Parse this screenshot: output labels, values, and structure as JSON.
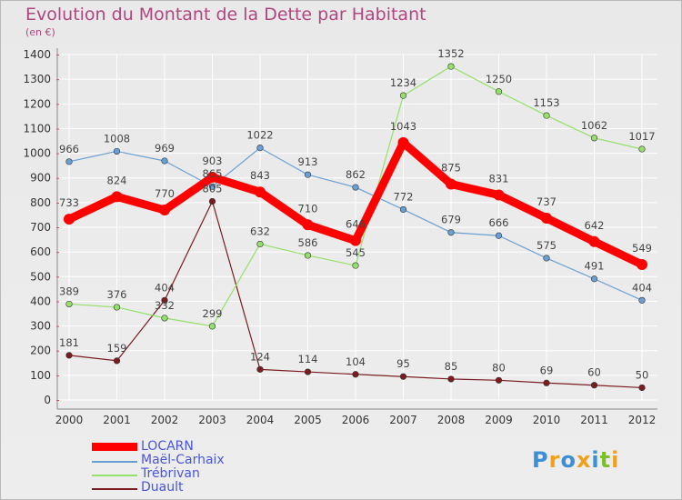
{
  "title": "Evolution du Montant de la Dette par Habitant",
  "subtitle": "(en €)",
  "logo": {
    "text": "Proxiti",
    "letters": [
      "P",
      "r",
      "o",
      "x",
      "i",
      "t",
      "i"
    ],
    "colors": [
      "#3a8fd6",
      "#f0a01a",
      "#3a8fd6",
      "#f0a01a",
      "#3a8fd6",
      "#7cbf2a",
      "#f0a01a"
    ]
  },
  "chart_data": {
    "type": "line",
    "x": [
      "2000",
      "2001",
      "2002",
      "2003",
      "2004",
      "2005",
      "2006",
      "2007",
      "2008",
      "2009",
      "2010",
      "2011",
      "2012"
    ],
    "ylim": [
      0,
      1400
    ],
    "yticks": [
      0,
      100,
      200,
      300,
      400,
      500,
      600,
      700,
      800,
      900,
      1000,
      1100,
      1200,
      1300,
      1400
    ],
    "grid": true,
    "legend": "bottom-left",
    "series": [
      {
        "name": "LOCARN",
        "color": "#ff0000",
        "width": 9,
        "point": 6,
        "values": [
          733,
          824,
          770,
          903,
          843,
          710,
          646,
          1043,
          875,
          831,
          737,
          642,
          549
        ],
        "labels": [
          "733",
          "824",
          "770",
          "903",
          "843",
          "710",
          "646",
          "1043",
          "875",
          "831",
          "737",
          "642",
          "549"
        ]
      },
      {
        "name": "Maël-Carhaix",
        "color": "#6a9fd4",
        "width": 1.2,
        "point": 3.3,
        "values": [
          966,
          1008,
          969,
          865,
          1022,
          913,
          862,
          772,
          679,
          666,
          575,
          491,
          404
        ],
        "labels": [
          "966",
          "1008",
          "969",
          "865",
          "1022",
          "913",
          "862",
          "772",
          "679",
          "666",
          "575",
          "491",
          "404"
        ]
      },
      {
        "name": "Trébrivan",
        "color": "#95e06a",
        "width": 1.2,
        "point": 3.3,
        "values": [
          389,
          376,
          332,
          299,
          632,
          586,
          545,
          1234,
          1352,
          1250,
          1153,
          1062,
          1017
        ],
        "labels": [
          "389",
          "376",
          "332",
          "299",
          "632",
          "586",
          "545",
          "1234",
          "1352",
          "1250",
          "1153",
          "1062",
          "1017"
        ]
      },
      {
        "name": "Duault",
        "color": "#7a1c20",
        "width": 1.2,
        "point": 3.3,
        "values": [
          181,
          159,
          404,
          805,
          124,
          114,
          104,
          95,
          85,
          80,
          69,
          60,
          50
        ],
        "labels": [
          "181",
          "159",
          "404",
          "805",
          "124",
          "114",
          "104",
          "95",
          "85",
          "80",
          "69",
          "60",
          "50"
        ]
      }
    ]
  }
}
